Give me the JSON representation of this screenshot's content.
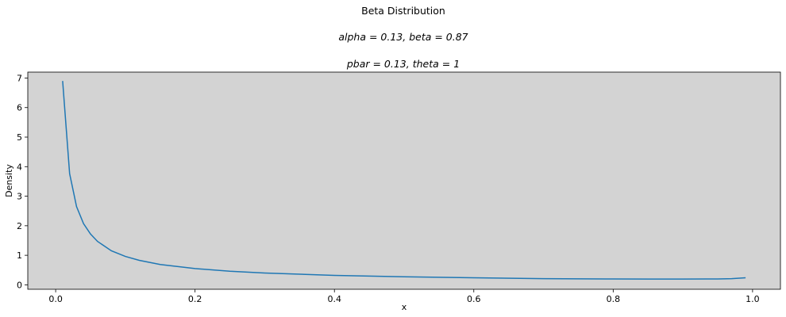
{
  "chart_data": {
    "type": "line",
    "title": "Beta Distribution",
    "subtitle_lines": [
      "alpha = 0.13, beta = 0.87",
      "pbar = 0.13, theta = 1"
    ],
    "xlabel": "x",
    "ylabel": "Density",
    "xlim": [
      -0.04,
      1.04
    ],
    "ylim": [
      -0.15,
      7.2
    ],
    "xticks": [
      0.0,
      0.2,
      0.4,
      0.6,
      0.8,
      1.0
    ],
    "xtick_labels": [
      "0.0",
      "0.2",
      "0.4",
      "0.6",
      "0.8",
      "1.0"
    ],
    "yticks": [
      0,
      1,
      2,
      3,
      4,
      5,
      6,
      7
    ],
    "ytick_labels": [
      "0",
      "1",
      "2",
      "3",
      "4",
      "5",
      "6",
      "7"
    ],
    "grid": false,
    "background": "#d3d3d3",
    "series": [
      {
        "color": "#1f77b4",
        "x": [
          0.01,
          0.02,
          0.03,
          0.04,
          0.05,
          0.06,
          0.08,
          0.1,
          0.12,
          0.15,
          0.2,
          0.25,
          0.3,
          0.4,
          0.5,
          0.6,
          0.7,
          0.8,
          0.85,
          0.9,
          0.95,
          0.97,
          0.99
        ],
        "y": [
          6.9,
          3.76,
          2.65,
          2.07,
          1.72,
          1.47,
          1.15,
          0.96,
          0.83,
          0.69,
          0.55,
          0.46,
          0.4,
          0.32,
          0.27,
          0.24,
          0.21,
          0.2,
          0.195,
          0.195,
          0.2,
          0.21,
          0.24
        ]
      }
    ]
  }
}
